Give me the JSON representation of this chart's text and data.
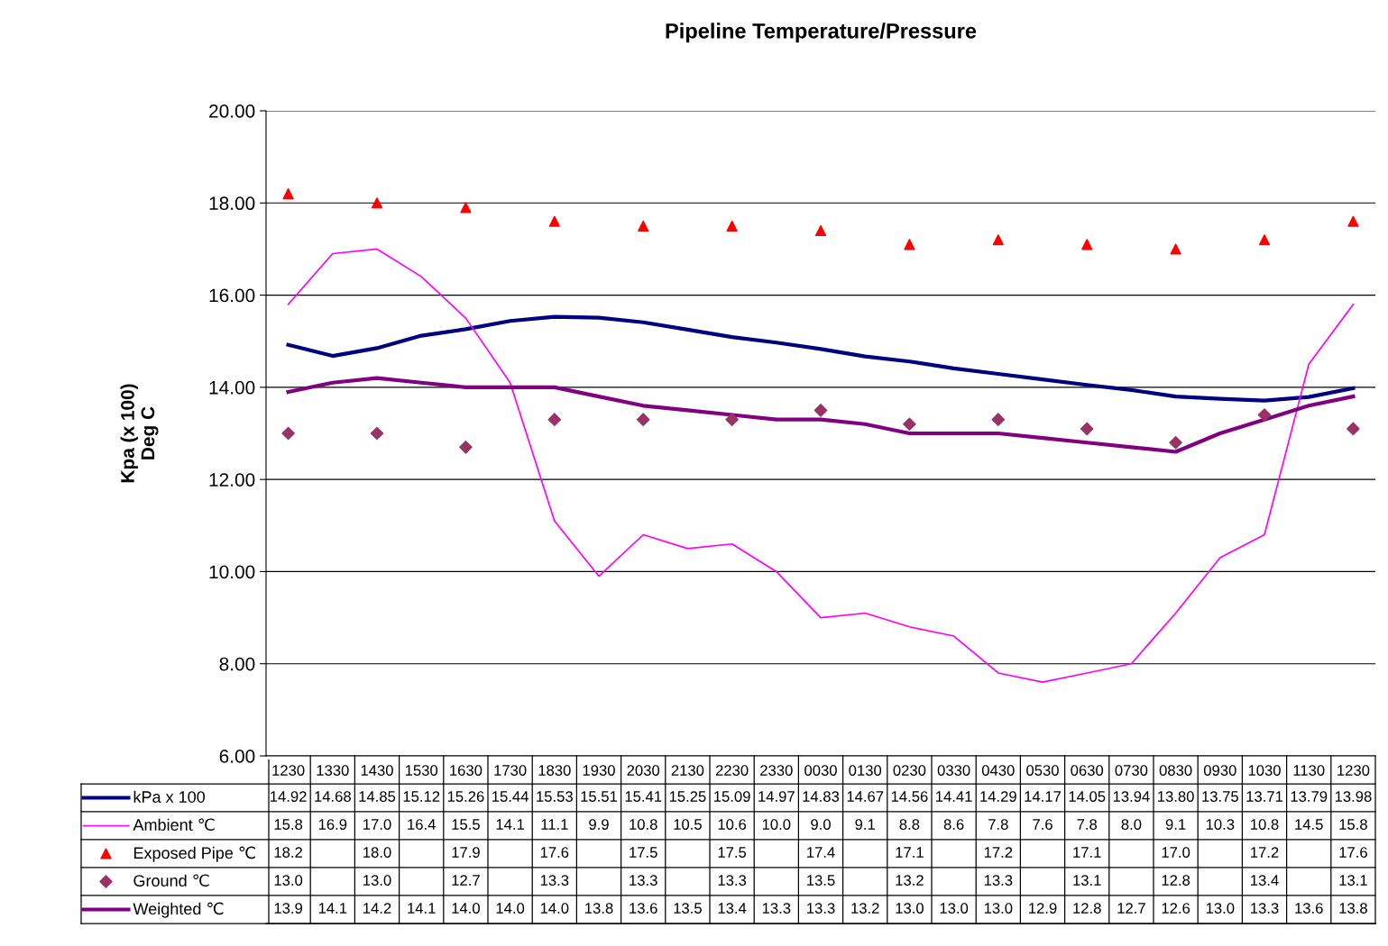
{
  "chart_data": {
    "type": "line",
    "title": "Pipeline Temperature/Pressure",
    "ylabel": "Kpa (x 100)\nDeg C",
    "categories": [
      "1230",
      "1330",
      "1430",
      "1530",
      "1630",
      "1730",
      "1830",
      "1930",
      "2030",
      "2130",
      "2230",
      "2330",
      "0030",
      "0130",
      "0230",
      "0330",
      "0430",
      "0530",
      "0630",
      "0730",
      "0830",
      "0930",
      "1030",
      "1130",
      "1230"
    ],
    "ylim": [
      6,
      20
    ],
    "yticks": [
      {
        "value": 6,
        "label": "6.00"
      },
      {
        "value": 8,
        "label": "8.00"
      },
      {
        "value": 10,
        "label": "10.00"
      },
      {
        "value": 12,
        "label": "12.00"
      },
      {
        "value": 14,
        "label": "14.00"
      },
      {
        "value": 16,
        "label": "16.00"
      },
      {
        "value": 18,
        "label": "18.00"
      },
      {
        "value": 20,
        "label": "20.00"
      }
    ],
    "grid": "y",
    "legend": "bottom",
    "series": [
      {
        "name": "kPa x 100",
        "color": "#000080",
        "marker": "none",
        "values": [
          14.92,
          14.68,
          14.85,
          15.12,
          15.26,
          15.44,
          15.53,
          15.51,
          15.41,
          15.25,
          15.09,
          14.97,
          14.83,
          14.67,
          14.56,
          14.41,
          14.29,
          14.17,
          14.05,
          13.94,
          13.8,
          13.75,
          13.71,
          13.79,
          13.98
        ],
        "value_labels": [
          "14.92",
          "14.68",
          "14.85",
          "15.12",
          "15.26",
          "15.44",
          "15.53",
          "15.51",
          "15.41",
          "15.25",
          "15.09",
          "14.97",
          "14.83",
          "14.67",
          "14.56",
          "14.41",
          "14.29",
          "14.17",
          "14.05",
          "13.94",
          "13.80",
          "13.75",
          "13.71",
          "13.79",
          "13.98"
        ]
      },
      {
        "name": "Ambient ℃",
        "color": "#ff00ff",
        "marker": "none",
        "values": [
          15.8,
          16.9,
          17.0,
          16.4,
          15.5,
          14.1,
          11.1,
          9.9,
          10.8,
          10.5,
          10.6,
          10.0,
          9.0,
          9.1,
          8.8,
          8.6,
          7.8,
          7.6,
          7.8,
          8.0,
          9.1,
          10.3,
          10.8,
          14.5,
          15.8
        ],
        "value_labels": [
          "15.8",
          "16.9",
          "17.0",
          "16.4",
          "15.5",
          "14.1",
          "11.1",
          "9.9",
          "10.8",
          "10.5",
          "10.6",
          "10.0",
          "9.0",
          "9.1",
          "8.8",
          "8.6",
          "7.8",
          "7.6",
          "7.8",
          "8.0",
          "9.1",
          "10.3",
          "10.8",
          "14.5",
          "15.8"
        ]
      },
      {
        "name": "Exposed Pipe ℃",
        "type": "scatter",
        "color": "#ff0000",
        "marker": "triangle",
        "values": [
          18.2,
          null,
          18.0,
          null,
          17.9,
          null,
          17.6,
          null,
          17.5,
          null,
          17.5,
          null,
          17.4,
          null,
          17.1,
          null,
          17.2,
          null,
          17.1,
          null,
          17.0,
          null,
          17.2,
          null,
          17.6
        ],
        "value_labels": [
          "18.2",
          null,
          "18.0",
          null,
          "17.9",
          null,
          "17.6",
          null,
          "17.5",
          null,
          "17.5",
          null,
          "17.4",
          null,
          "17.1",
          null,
          "17.2",
          null,
          "17.1",
          null,
          "17.0",
          null,
          "17.2",
          null,
          "17.6"
        ]
      },
      {
        "name": "Ground ℃",
        "type": "scatter",
        "color": "#993366",
        "marker": "diamond",
        "values": [
          13.0,
          null,
          13.0,
          null,
          12.7,
          null,
          13.3,
          null,
          13.3,
          null,
          13.3,
          null,
          13.5,
          null,
          13.2,
          null,
          13.3,
          null,
          13.1,
          null,
          12.8,
          null,
          13.4,
          null,
          13.1
        ],
        "value_labels": [
          "13.0",
          null,
          "13.0",
          null,
          "12.7",
          null,
          "13.3",
          null,
          "13.3",
          null,
          "13.3",
          null,
          "13.5",
          null,
          "13.2",
          null,
          "13.3",
          null,
          "13.1",
          null,
          "12.8",
          null,
          "13.4",
          null,
          "13.1"
        ]
      },
      {
        "name": "Weighted ℃",
        "color": "#800080",
        "marker": "none",
        "values": [
          13.9,
          14.1,
          14.2,
          14.1,
          14.0,
          14.0,
          14.0,
          13.8,
          13.6,
          13.5,
          13.4,
          13.3,
          13.3,
          13.2,
          13.0,
          13.0,
          13.0,
          12.9,
          12.8,
          12.7,
          12.6,
          13.0,
          13.3,
          13.6,
          13.8
        ],
        "value_labels": [
          "13.9",
          "14.1",
          "14.2",
          "14.1",
          "14.0",
          "14.0",
          "14.0",
          "13.8",
          "13.6",
          "13.5",
          "13.4",
          "13.3",
          "13.3",
          "13.2",
          "13.0",
          "13.0",
          "13.0",
          "12.9",
          "12.8",
          "12.7",
          "12.6",
          "13.0",
          "13.3",
          "13.6",
          "13.8"
        ]
      }
    ]
  }
}
